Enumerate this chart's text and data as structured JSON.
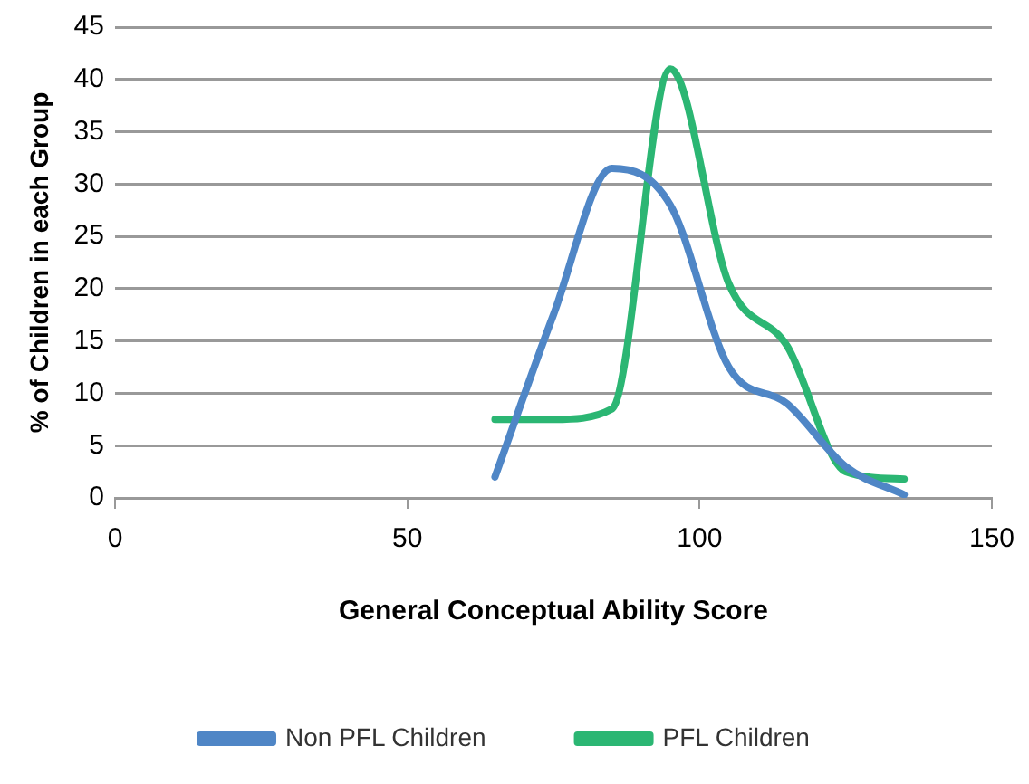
{
  "chart_data": {
    "type": "line",
    "xlabel": "General Conceptual Ability Score",
    "ylabel": "% of Children in each Group",
    "xlim": [
      0,
      150
    ],
    "xticks": [
      0,
      50,
      100,
      150
    ],
    "ylim": [
      0,
      45
    ],
    "yticks": [
      0,
      5,
      10,
      15,
      20,
      25,
      30,
      35,
      40,
      45
    ],
    "grid": "y",
    "legend": "bottom",
    "marker": "none",
    "line_style": "solid",
    "series": [
      {
        "name": "Non PFL Children",
        "color": "#4f86c6",
        "x": [
          65,
          75,
          85,
          95,
          105,
          115,
          125,
          135
        ],
        "values": [
          2,
          17.5,
          31.5,
          28,
          12.5,
          9,
          3,
          0.3
        ]
      },
      {
        "name": "PFL Children",
        "color": "#2bb673",
        "x": [
          65,
          75,
          85,
          95,
          105,
          115,
          125,
          135
        ],
        "values": [
          7.5,
          7.5,
          8.5,
          41,
          20.5,
          14.5,
          2.5,
          1.8
        ]
      }
    ]
  }
}
